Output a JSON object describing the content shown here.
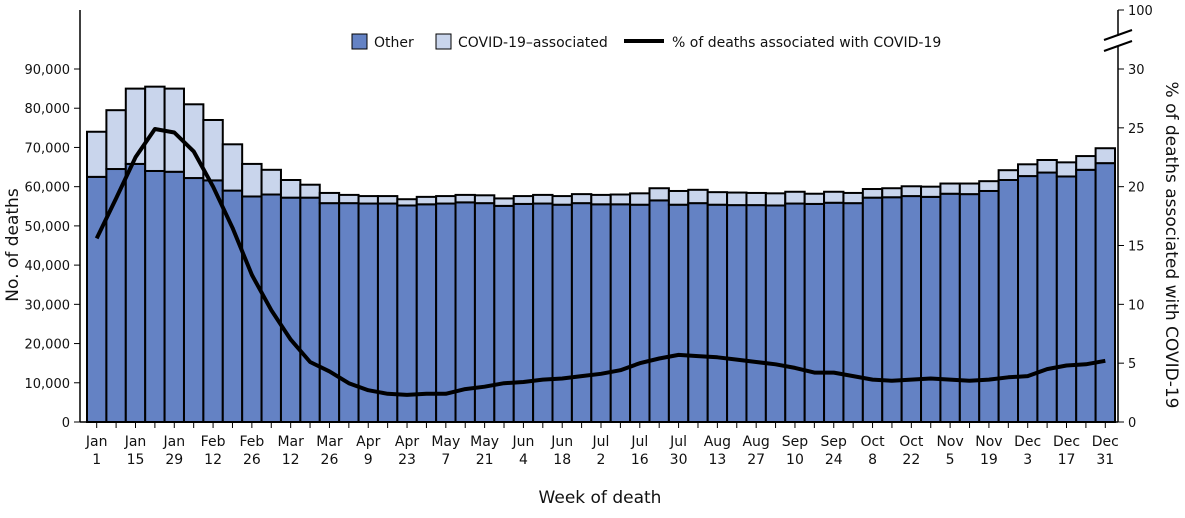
{
  "chart_data": {
    "type": "bar",
    "stacked": true,
    "xlabel": "Week of death",
    "ylabel": "No. of deaths",
    "y2label": "% of deaths associated with COVID-19",
    "ylim": [
      0,
      90000
    ],
    "yticks": [
      "0",
      "10,000",
      "20,000",
      "30,000",
      "40,000",
      "50,000",
      "60,000",
      "70,000",
      "80,000",
      "90,000"
    ],
    "y2lim": [
      0,
      30
    ],
    "y2ticks": [
      "0",
      "5",
      "10",
      "15",
      "20",
      "25",
      "30"
    ],
    "y2break_label": "100",
    "grid": false,
    "legend_position": "top-center",
    "colors": {
      "other": "#6482C4",
      "covid": "#C9D5EC",
      "line": "#000000"
    },
    "xticklabels": [
      [
        "Jan",
        "1"
      ],
      [
        "Jan",
        "15"
      ],
      [
        "Jan",
        "29"
      ],
      [
        "Feb",
        "12"
      ],
      [
        "Feb",
        "26"
      ],
      [
        "Mar",
        "12"
      ],
      [
        "Mar",
        "26"
      ],
      [
        "Apr",
        "9"
      ],
      [
        "Apr",
        "23"
      ],
      [
        "May",
        "7"
      ],
      [
        "May",
        "21"
      ],
      [
        "Jun",
        "4"
      ],
      [
        "Jun",
        "18"
      ],
      [
        "Jul",
        "2"
      ],
      [
        "Jul",
        "16"
      ],
      [
        "Jul",
        "30"
      ],
      [
        "Aug",
        "13"
      ],
      [
        "Aug",
        "27"
      ],
      [
        "Sep",
        "10"
      ],
      [
        "Sep",
        "24"
      ],
      [
        "Oct",
        "8"
      ],
      [
        "Oct",
        "22"
      ],
      [
        "Nov",
        "5"
      ],
      [
        "Nov",
        "19"
      ],
      [
        "Dec",
        "3"
      ],
      [
        "Dec",
        "17"
      ],
      [
        "Dec",
        "31"
      ]
    ],
    "series": [
      {
        "name": "Other",
        "kind": "bar",
        "values": [
          62500,
          64500,
          65800,
          64000,
          63800,
          62200,
          61600,
          59000,
          57500,
          58000,
          57200,
          57200,
          55800,
          55800,
          55700,
          55700,
          55200,
          55500,
          55700,
          56000,
          55800,
          55100,
          55600,
          55700,
          55400,
          55800,
          55500,
          55500,
          55400,
          56500,
          55400,
          55800,
          55400,
          55300,
          55300,
          55200,
          55700,
          55600,
          55900,
          55800,
          57200,
          57300,
          57600,
          57400,
          58200,
          58100,
          58900,
          61700,
          62700,
          63600,
          62600,
          64300,
          66000
        ]
      },
      {
        "name": "COVID-19–associated",
        "kind": "bar",
        "values": [
          11500,
          15000,
          19200,
          21500,
          21200,
          18800,
          15400,
          11800,
          8300,
          6300,
          4500,
          3300,
          2600,
          2100,
          1900,
          1900,
          1600,
          1900,
          1900,
          1900,
          2000,
          1900,
          2000,
          2200,
          2200,
          2300,
          2400,
          2500,
          2900,
          3100,
          3500,
          3400,
          3200,
          3200,
          3100,
          3100,
          3000,
          2600,
          2800,
          2600,
          2200,
          2300,
          2500,
          2600,
          2600,
          2700,
          2500,
          2500,
          3000,
          3200,
          3600,
          3500,
          3800
        ]
      },
      {
        "name": "% of deaths associated with COVID-19",
        "kind": "line",
        "axis": "right",
        "values": [
          15.6,
          19.0,
          22.5,
          24.9,
          24.6,
          23.0,
          20.0,
          16.5,
          12.5,
          9.5,
          7.0,
          5.1,
          4.3,
          3.3,
          2.7,
          2.4,
          2.3,
          2.4,
          2.4,
          2.8,
          3.0,
          3.3,
          3.4,
          3.6,
          3.7,
          3.9,
          4.1,
          4.4,
          5.0,
          5.4,
          5.7,
          5.6,
          5.5,
          5.3,
          5.1,
          4.9,
          4.6,
          4.2,
          4.2,
          3.9,
          3.6,
          3.5,
          3.6,
          3.7,
          3.6,
          3.5,
          3.6,
          3.8,
          3.9,
          4.5,
          4.8,
          4.9,
          5.2
        ]
      }
    ]
  }
}
